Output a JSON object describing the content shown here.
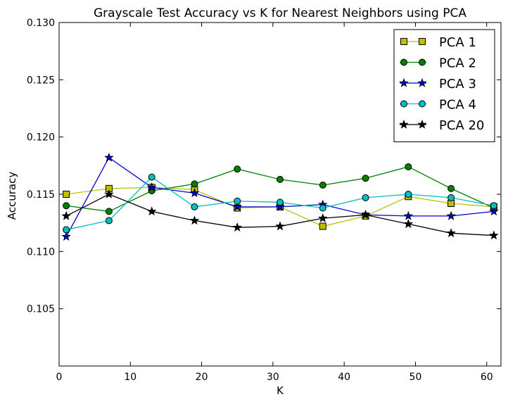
{
  "chart_data": {
    "type": "line",
    "title": "Grayscale Test Accuracy vs K for Nearest Neighbors using PCA",
    "xlabel": "K",
    "ylabel": "Accuracy",
    "xlim": [
      0,
      62
    ],
    "ylim": [
      0.1,
      0.13
    ],
    "xticks": [
      0,
      10,
      20,
      30,
      40,
      50,
      60
    ],
    "yticks": [
      0.105,
      0.11,
      0.115,
      0.12,
      0.125,
      0.13
    ],
    "ytick_labels": [
      "0.105",
      "0.110",
      "0.115",
      "0.120",
      "0.125",
      "0.130"
    ],
    "grid": false,
    "legend_position": "top-right",
    "x": [
      1,
      7,
      13,
      19,
      25,
      31,
      37,
      43,
      49,
      55,
      61
    ],
    "series": [
      {
        "name": "PCA 1",
        "color": "#bfbf00",
        "marker": "square",
        "values": [
          0.115,
          0.1155,
          0.1156,
          0.1154,
          0.1138,
          0.1139,
          0.1122,
          0.1131,
          0.1148,
          0.1142,
          0.1139
        ]
      },
      {
        "name": "PCA 2",
        "color": "#007f00",
        "marker": "circle",
        "values": [
          0.114,
          0.1135,
          0.1153,
          0.1159,
          0.1172,
          0.1163,
          0.1158,
          0.1164,
          0.1174,
          0.1155,
          0.1138
        ]
      },
      {
        "name": "PCA 3",
        "color": "#0000cc",
        "marker": "star",
        "values": [
          0.1113,
          0.1182,
          0.1156,
          0.1151,
          0.1139,
          0.1139,
          0.1141,
          0.1132,
          0.1131,
          0.1131,
          0.1135
        ]
      },
      {
        "name": "PCA 4",
        "color": "#00bfbf",
        "marker": "circle",
        "values": [
          0.1119,
          0.1127,
          0.1165,
          0.1139,
          0.1144,
          0.1143,
          0.1138,
          0.1147,
          0.115,
          0.1147,
          0.114
        ]
      },
      {
        "name": "PCA 20",
        "color": "#000000",
        "marker": "star",
        "values": [
          0.1131,
          0.115,
          0.1135,
          0.1127,
          0.1121,
          0.1122,
          0.1129,
          0.1132,
          0.1124,
          0.1116,
          0.1114
        ]
      }
    ]
  }
}
